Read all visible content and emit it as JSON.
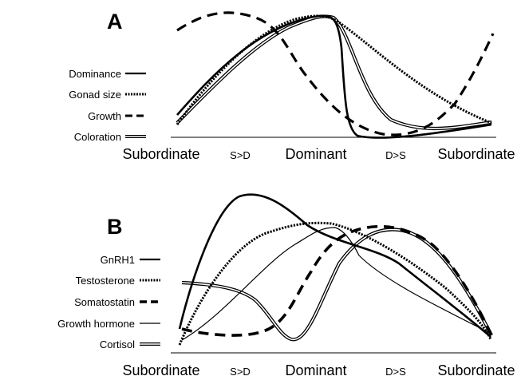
{
  "panels": [
    {
      "label": "A",
      "legend": [
        {
          "name": "Dominance",
          "style": "solid"
        },
        {
          "name": "Gonad size",
          "style": "dotted"
        },
        {
          "name": "Growth",
          "style": "dashed"
        },
        {
          "name": "Coloration",
          "style": "double"
        }
      ],
      "x_labels": [
        "Subordinate",
        "S>D",
        "Dominant",
        "D>S",
        "Subordinate"
      ]
    },
    {
      "label": "B",
      "legend": [
        {
          "name": "GnRH1",
          "style": "solid"
        },
        {
          "name": "Testosterone",
          "style": "dotted"
        },
        {
          "name": "Somatostatin",
          "style": "dashed"
        },
        {
          "name": "Growth hormone",
          "style": "thin"
        },
        {
          "name": "Cortisol",
          "style": "double"
        }
      ],
      "x_labels": [
        "Subordinate",
        "S>D",
        "Dominant",
        "D>S",
        "Subordinate"
      ]
    }
  ],
  "colors": {
    "ink": "#000000",
    "background": "#ffffff"
  }
}
